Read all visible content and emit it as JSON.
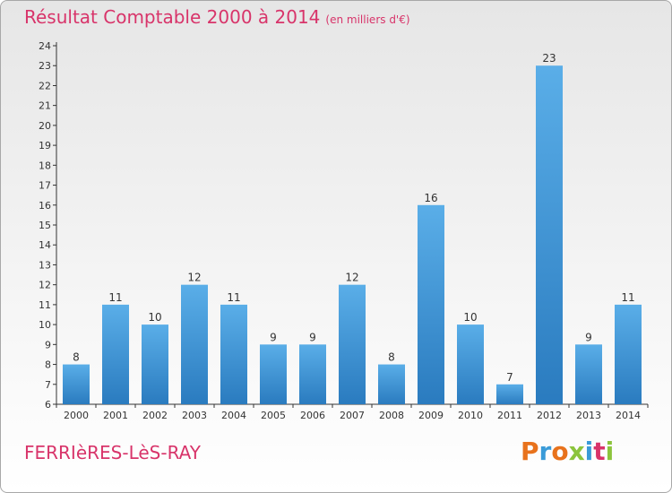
{
  "header": {
    "title": "Résultat Comptable 2000 à 2014",
    "unit": "(en milliers d'€)"
  },
  "footer": {
    "place": "FERRIèRES-LèS-RAY",
    "logo_text": "Proxiti",
    "logo_colors": [
      "#e8721c",
      "#3a9bd8",
      "#e8721c",
      "#8cc43c",
      "#3a9bd8",
      "#d8346a",
      "#8cc43c"
    ]
  },
  "colors": {
    "title": "#d8346a",
    "bar_light": "#5aaee8",
    "bar_dark": "#2a7bbf",
    "axis": "#333333"
  },
  "chart_data": {
    "type": "bar",
    "categories": [
      "2000",
      "2001",
      "2002",
      "2003",
      "2004",
      "2005",
      "2006",
      "2007",
      "2008",
      "2009",
      "2010",
      "2011",
      "2012",
      "2013",
      "2014"
    ],
    "values": [
      8,
      11,
      10,
      12,
      11,
      9,
      9,
      12,
      8,
      16,
      10,
      7,
      23,
      9,
      11
    ],
    "ylim": [
      6,
      24
    ],
    "yticks": [
      6,
      7,
      8,
      9,
      10,
      11,
      12,
      13,
      14,
      15,
      16,
      17,
      18,
      19,
      20,
      21,
      22,
      23,
      24
    ],
    "grid": false,
    "legend": "none"
  }
}
